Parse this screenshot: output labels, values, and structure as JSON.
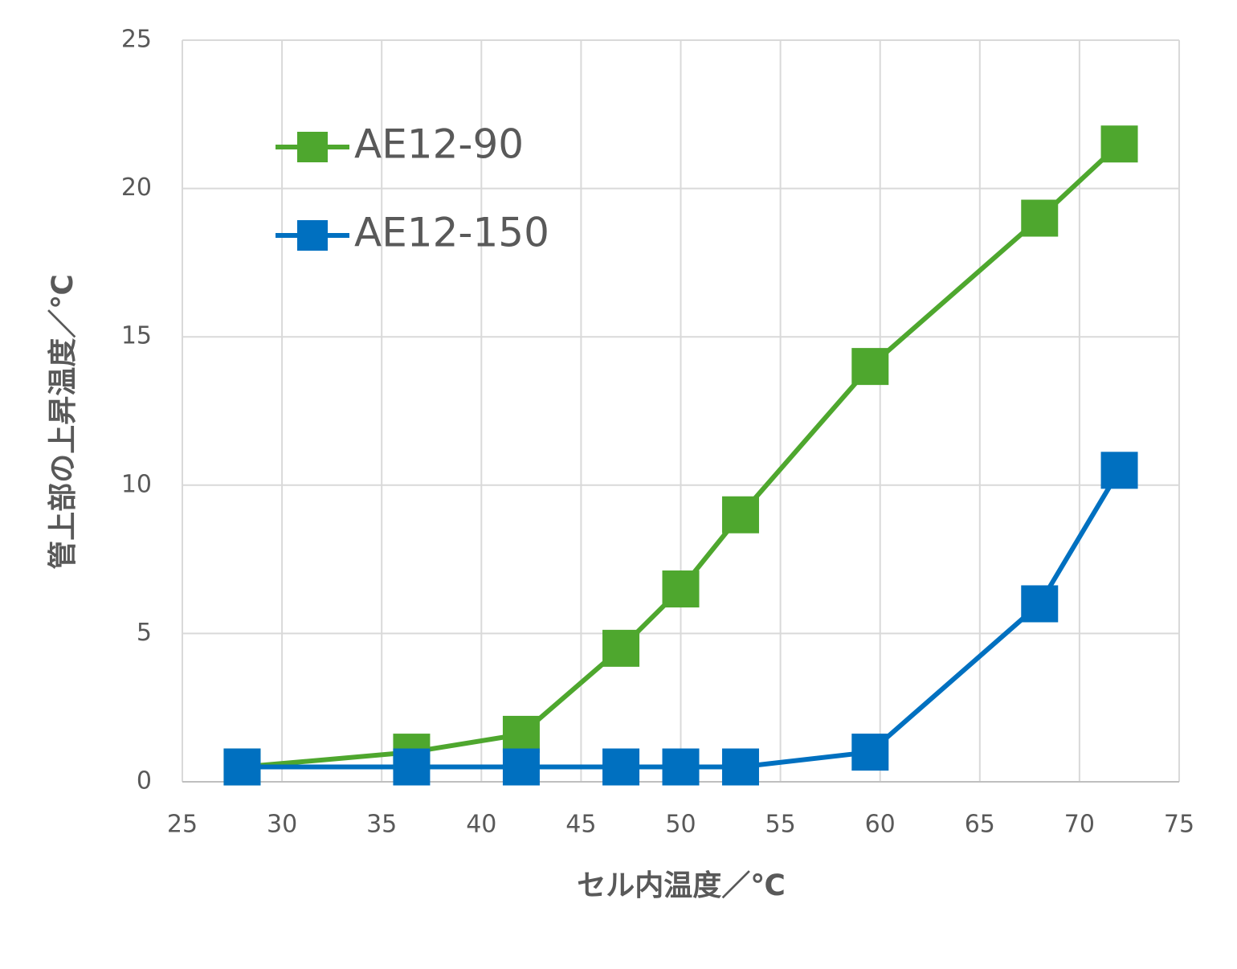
{
  "chart_data": {
    "type": "line",
    "x_label": "セル内温度／℃",
    "y_label": "管上部の上昇温度／℃",
    "x": [
      28,
      36.5,
      42,
      47,
      50,
      53,
      59.5,
      68,
      72
    ],
    "series": [
      {
        "name": "AE12-90",
        "color": "#4ea72e",
        "values": [
          0.5,
          1,
          1.6,
          4.5,
          6.5,
          9,
          14,
          19,
          21.5
        ]
      },
      {
        "name": "AE12-150",
        "color": "#0070c0",
        "values": [
          0.5,
          0.5,
          0.5,
          0.5,
          0.5,
          0.5,
          1,
          6,
          10.5
        ]
      }
    ],
    "xlim": [
      25,
      75
    ],
    "xticks": [
      25,
      30,
      35,
      40,
      45,
      50,
      55,
      60,
      65,
      70,
      75
    ],
    "ylim": [
      0,
      25
    ],
    "yticks": [
      0,
      5,
      10,
      15,
      20,
      25
    ],
    "grid": true,
    "legend": "upper left"
  }
}
